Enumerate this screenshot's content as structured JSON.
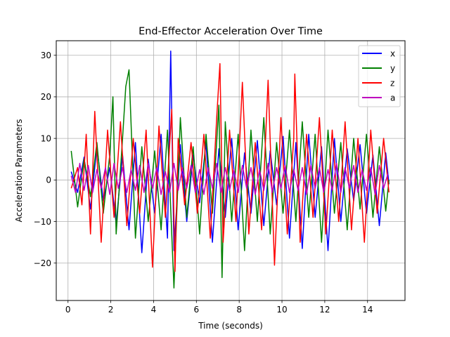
{
  "chart_data": {
    "type": "line",
    "title": "End-Effector Acceleration Over Time",
    "xlabel": "Time (seconds)",
    "ylabel": "Acceleration Parameters",
    "xlim": [
      -0.55,
      15.75
    ],
    "ylim": [
      -29.0,
      33.5
    ],
    "xticks": [
      0,
      2,
      4,
      6,
      8,
      10,
      12,
      14
    ],
    "yticks": [
      -20,
      -10,
      0,
      10,
      20,
      30
    ],
    "tick_labels_x": [
      "0",
      "2",
      "4",
      "6",
      "8",
      "10",
      "12",
      "14"
    ],
    "tick_labels_y": [
      "−20",
      "−10",
      "0",
      "10",
      "20",
      "30"
    ],
    "grid": true,
    "legend_position": "top-right",
    "series": [
      {
        "name": "x",
        "color": "#0000ff",
        "x": [
          0.15,
          0.45,
          0.75,
          1.05,
          1.35,
          1.65,
          1.95,
          2.25,
          2.55,
          2.85,
          3.15,
          3.45,
          3.75,
          4.05,
          4.35,
          4.65,
          4.8,
          4.95,
          5.25,
          5.55,
          5.85,
          6.15,
          6.45,
          6.75,
          7.05,
          7.35,
          7.65,
          7.95,
          8.25,
          8.55,
          8.85,
          9.15,
          9.45,
          9.75,
          10.05,
          10.35,
          10.65,
          10.95,
          11.25,
          11.55,
          11.85,
          12.15,
          12.45,
          12.75,
          13.05,
          13.35,
          13.65,
          13.95,
          14.25,
          14.55,
          14.85,
          15.0
        ],
        "y": [
          2.0,
          -3.0,
          5.5,
          -7.0,
          8.0,
          -5.0,
          3.0,
          -10.5,
          6.0,
          -12.0,
          9.0,
          -17.5,
          5.0,
          -8.0,
          11.0,
          -14.0,
          31.0,
          -17.0,
          8.5,
          -10.0,
          6.0,
          -5.5,
          9.0,
          -15.0,
          7.5,
          -9.0,
          10.0,
          -12.0,
          6.5,
          -8.0,
          9.5,
          -11.0,
          7.0,
          -6.0,
          10.5,
          -14.0,
          9.0,
          -16.5,
          11.0,
          -9.0,
          8.0,
          -17.0,
          10.0,
          -10.0,
          7.5,
          -5.0,
          8.5,
          -8.0,
          6.0,
          -11.0,
          6.5,
          -1.0
        ]
      },
      {
        "name": "y",
        "color": "#008000",
        "x": [
          0.15,
          0.45,
          0.75,
          1.05,
          1.35,
          1.65,
          1.95,
          2.1,
          2.25,
          2.55,
          2.7,
          2.85,
          3.15,
          3.45,
          3.75,
          4.05,
          4.35,
          4.65,
          4.95,
          5.25,
          5.55,
          5.85,
          6.15,
          6.45,
          6.75,
          7.05,
          7.2,
          7.35,
          7.65,
          7.95,
          8.25,
          8.55,
          8.85,
          9.15,
          9.45,
          9.75,
          10.05,
          10.35,
          10.65,
          10.95,
          11.25,
          11.55,
          11.85,
          12.15,
          12.45,
          12.75,
          13.05,
          13.35,
          13.65,
          13.95,
          14.25,
          14.55,
          14.85,
          15.0
        ],
        "y": [
          7.0,
          -6.5,
          5.0,
          -4.0,
          9.0,
          -8.0,
          6.0,
          20.0,
          -13.0,
          10.0,
          22.5,
          26.5,
          -14.0,
          8.0,
          -10.0,
          7.0,
          -12.0,
          12.0,
          -26.0,
          15.0,
          -9.0,
          8.0,
          -13.0,
          11.0,
          -8.0,
          18.0,
          -23.5,
          14.0,
          -10.0,
          11.0,
          -17.0,
          12.0,
          -10.0,
          15.0,
          -13.0,
          9.0,
          -8.0,
          12.0,
          -10.0,
          14.0,
          -9.0,
          11.0,
          -15.0,
          12.0,
          -8.0,
          9.0,
          -12.0,
          10.0,
          -7.0,
          11.0,
          -9.0,
          8.0,
          -7.5,
          0.0
        ]
      },
      {
        "name": "z",
        "color": "#ff0000",
        "x": [
          0.15,
          0.45,
          0.65,
          0.85,
          1.05,
          1.25,
          1.55,
          1.85,
          2.15,
          2.45,
          2.75,
          3.05,
          3.35,
          3.65,
          3.95,
          4.25,
          4.55,
          4.85,
          5.0,
          5.15,
          5.45,
          5.75,
          6.05,
          6.35,
          6.65,
          6.95,
          7.1,
          7.25,
          7.55,
          7.85,
          8.15,
          8.45,
          8.75,
          9.05,
          9.35,
          9.65,
          9.95,
          10.25,
          10.55,
          10.6,
          10.85,
          11.15,
          11.45,
          11.75,
          12.05,
          12.35,
          12.65,
          12.95,
          13.25,
          13.55,
          13.85,
          14.15,
          14.45,
          14.75,
          15.0
        ],
        "y": [
          -2.0,
          3.0,
          -6.0,
          11.0,
          -13.0,
          16.5,
          -15.0,
          12.0,
          -9.0,
          14.0,
          -11.0,
          10.0,
          -8.0,
          12.0,
          -21.0,
          13.0,
          -9.0,
          17.0,
          -22.0,
          10.0,
          -6.0,
          9.0,
          -8.0,
          11.0,
          -14.0,
          15.0,
          28.0,
          -15.0,
          12.0,
          -10.0,
          23.5,
          -13.0,
          9.0,
          -12.0,
          24.0,
          -20.5,
          15.0,
          -13.0,
          10.0,
          25.5,
          -15.0,
          11.0,
          -9.0,
          15.0,
          -13.0,
          12.0,
          -10.0,
          14.0,
          -12.0,
          10.0,
          -15.0,
          12.0,
          -8.0,
          10.0,
          -3.0
        ]
      },
      {
        "name": "a",
        "color": "#bf00bf",
        "x": [
          0.15,
          0.35,
          0.55,
          0.75,
          0.95,
          1.15,
          1.35,
          1.55,
          1.75,
          1.95,
          2.15,
          2.35,
          2.55,
          2.75,
          2.95,
          3.15,
          3.35,
          3.55,
          3.75,
          3.95,
          4.15,
          4.35,
          4.55,
          4.75,
          4.95,
          5.15,
          5.35,
          5.55,
          5.75,
          5.95,
          6.15,
          6.35,
          6.55,
          6.75,
          6.95,
          7.15,
          7.35,
          7.55,
          7.75,
          7.95,
          8.15,
          8.35,
          8.55,
          8.75,
          8.95,
          9.15,
          9.35,
          9.55,
          9.75,
          9.95,
          10.15,
          10.35,
          10.55,
          10.75,
          10.95,
          11.15,
          11.35,
          11.55,
          11.75,
          11.95,
          12.15,
          12.35,
          12.55,
          12.75,
          12.95,
          13.15,
          13.35,
          13.55,
          13.75,
          13.95,
          14.15,
          14.35,
          14.55,
          14.75,
          14.95
        ],
        "y": [
          1.0,
          -3.0,
          4.0,
          -2.5,
          3.5,
          -3.0,
          2.5,
          -2.0,
          3.0,
          -3.5,
          4.0,
          -2.0,
          3.0,
          -3.0,
          2.5,
          -2.5,
          3.5,
          -3.0,
          4.0,
          -2.0,
          3.0,
          -3.5,
          2.0,
          -3.0,
          4.0,
          -2.5,
          3.0,
          -2.0,
          3.5,
          -3.0,
          2.5,
          -3.5,
          3.0,
          -2.0,
          4.0,
          -3.0,
          3.0,
          -2.5,
          2.5,
          -3.0,
          3.5,
          -2.0,
          3.0,
          -3.5,
          2.5,
          -2.5,
          4.0,
          -3.0,
          3.0,
          -2.0,
          3.5,
          -3.0,
          2.5,
          -2.5,
          3.0,
          -3.5,
          3.5,
          -2.0,
          3.0,
          -3.0,
          2.5,
          -2.5,
          4.0,
          -3.0,
          3.0,
          -2.0,
          3.5,
          -3.0,
          2.5,
          -2.5,
          3.0,
          -3.5,
          3.5,
          -2.0,
          1.5
        ]
      }
    ]
  }
}
